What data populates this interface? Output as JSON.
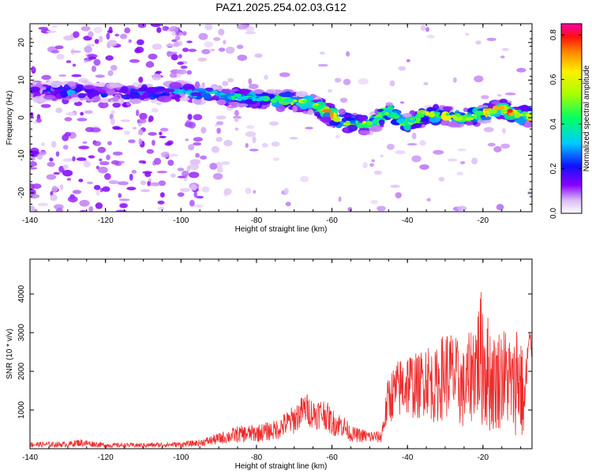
{
  "title": "PAZ1.2025.254.02.03.G12",
  "colors": {
    "snr_line": "#ee2b2b",
    "axis": "#000000",
    "background": "#ffffff"
  },
  "chart_data": [
    {
      "type": "heatmap",
      "title": "PAZ1.2025.254.02.03.G12",
      "xlabel": "Height of straight line (km)",
      "ylabel": "Frequency (Hz)",
      "xlim": [
        -140,
        -7
      ],
      "ylim": [
        -25,
        25
      ],
      "xticks": [
        -140,
        -120,
        -100,
        -80,
        -60,
        -40,
        -20
      ],
      "yticks": [
        -20,
        -10,
        0,
        10,
        20
      ],
      "colorbar": {
        "label": "Normalized spectral amplitude",
        "range": [
          0,
          0.85
        ],
        "ticks": [
          0.0,
          0.2,
          0.4,
          0.6,
          0.8
        ]
      },
      "ridge": {
        "description": "dominant frequency ridge (center frequency in Hz vs height in km)",
        "x": [
          -140,
          -130,
          -120,
          -110,
          -100,
          -90,
          -80,
          -70,
          -65,
          -60,
          -55,
          -50,
          -45,
          -40,
          -35,
          -30,
          -25,
          -20,
          -15,
          -10,
          -7
        ],
        "frequency": [
          7,
          7,
          6.5,
          6.5,
          7,
          6,
          5,
          4.5,
          3.5,
          0.5,
          -1.5,
          -2,
          2,
          -1.5,
          1,
          0.5,
          0,
          1,
          2.5,
          0.5,
          0.5
        ],
        "peak_amplitude": [
          0.25,
          0.3,
          0.25,
          0.3,
          0.35,
          0.4,
          0.45,
          0.55,
          0.6,
          0.75,
          0.6,
          0.55,
          0.5,
          0.55,
          0.6,
          0.6,
          0.55,
          0.65,
          0.7,
          0.8,
          0.7
        ]
      }
    },
    {
      "type": "line",
      "xlabel": "Height of straight line (km)",
      "ylabel": "SNR (10 * v/v)",
      "xlim": [
        -140,
        -7
      ],
      "ylim": [
        0,
        4900
      ],
      "xticks": [
        -140,
        -120,
        -100,
        -80,
        -60,
        -40,
        -20
      ],
      "yticks": [
        1000,
        2000,
        3000,
        4000
      ],
      "series": [
        {
          "name": "SNR",
          "description": "envelope of a noisy SNR trace (mean level with oscillation amplitude)",
          "x": [
            -140,
            -130,
            -127,
            -120,
            -110,
            -100,
            -95,
            -90,
            -85,
            -80,
            -75,
            -70,
            -67,
            -65,
            -62,
            -60,
            -57,
            -55,
            -50,
            -47,
            -45,
            -43,
            -40,
            -37,
            -35,
            -33,
            -30,
            -28,
            -25,
            -22,
            -20,
            -19,
            -17,
            -15,
            -13,
            -12,
            -11,
            -10,
            -9,
            -8,
            -7
          ],
          "mean": [
            110,
            110,
            160,
            90,
            90,
            110,
            150,
            260,
            370,
            400,
            480,
            760,
            1050,
            900,
            920,
            680,
            600,
            380,
            310,
            300,
            1300,
            1500,
            1700,
            1600,
            1900,
            1550,
            1950,
            1900,
            1500,
            2200,
            2400,
            2000,
            1700,
            1900,
            1800,
            1500,
            2000,
            1700,
            1100,
            2600,
            2700
          ],
          "amplitude": [
            70,
            70,
            100,
            60,
            60,
            70,
            90,
            150,
            220,
            230,
            260,
            380,
            420,
            400,
            400,
            350,
            300,
            200,
            170,
            150,
            650,
            750,
            900,
            850,
            1000,
            900,
            1200,
            1150,
            1050,
            1400,
            1900,
            1600,
            1300,
            1350,
            1300,
            1100,
            1700,
            1500,
            900,
            600,
            400
          ]
        }
      ]
    }
  ]
}
